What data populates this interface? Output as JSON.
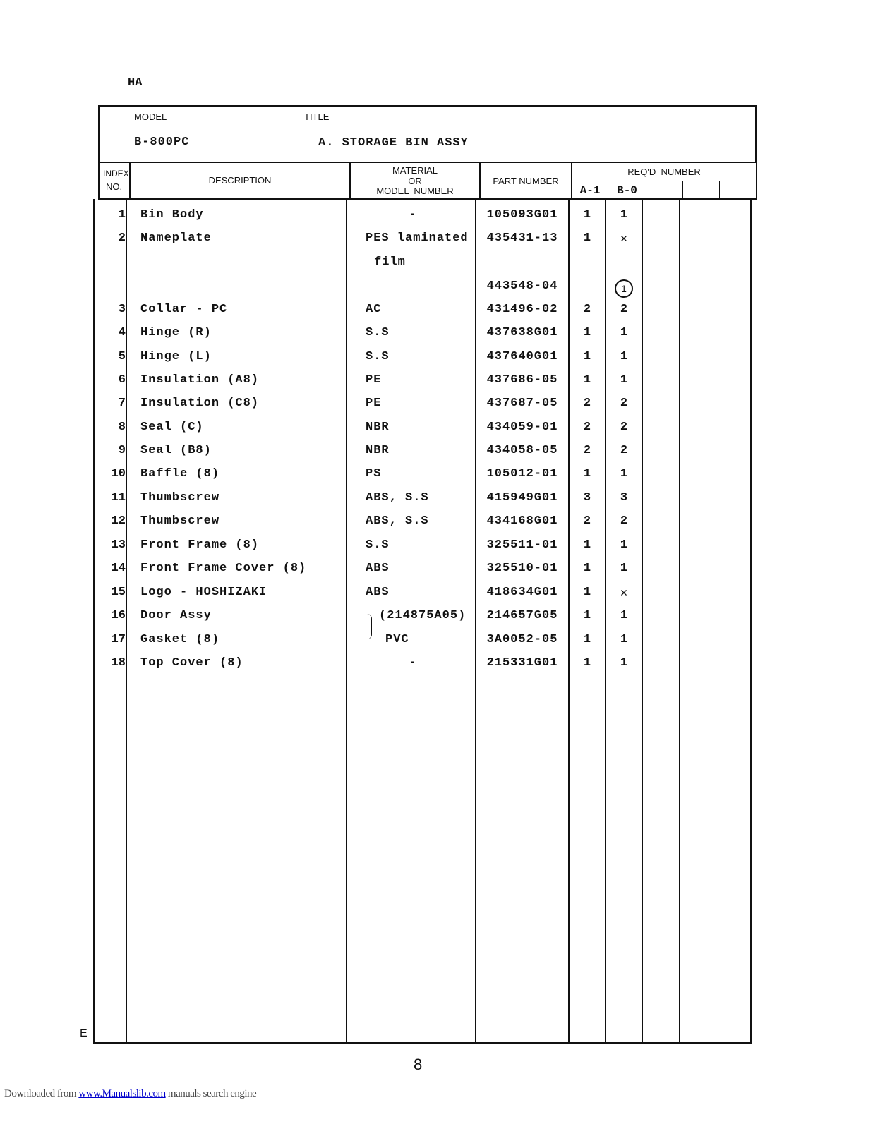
{
  "page_code": "HA",
  "header": {
    "model_label": "MODEL",
    "title_label": "TITLE",
    "model": "B-800PC",
    "title": "A. STORAGE BIN ASSY"
  },
  "columns": {
    "index_1": "INDEX",
    "index_2": "NO.",
    "description": "DESCRIPTION",
    "material_1": "MATERIAL",
    "material_2": "OR",
    "material_3": "MODEL  NUMBER",
    "part_number": "PART NUMBER",
    "reqd_number": "REQ'D  NUMBER",
    "variant_a": "A-1",
    "variant_b": "B-0"
  },
  "rows": [
    {
      "no": "1",
      "desc": "Bin Body",
      "mat": "-",
      "part": "105093G01",
      "a": "1",
      "b": "1"
    },
    {
      "no": "2",
      "desc": "Nameplate",
      "mat": "PES laminated",
      "part": "435431-13",
      "a": "1",
      "b": "✕"
    },
    {
      "no": "",
      "desc": "",
      "mat": "film",
      "part": "",
      "a": "",
      "b": ""
    },
    {
      "no": "",
      "desc": "",
      "mat": "",
      "part": "443548-04",
      "a": "",
      "b": "1",
      "b_circled": true
    },
    {
      "no": "3",
      "desc": "Collar - PC",
      "mat": "AC",
      "part": "431496-02",
      "a": "2",
      "b": "2"
    },
    {
      "no": "4",
      "desc": "Hinge (R)",
      "mat": "S.S",
      "part": "437638G01",
      "a": "1",
      "b": "1"
    },
    {
      "no": "5",
      "desc": "Hinge (L)",
      "mat": "S.S",
      "part": "437640G01",
      "a": "1",
      "b": "1"
    },
    {
      "no": "6",
      "desc": "Insulation (A8)",
      "mat": "PE",
      "part": "437686-05",
      "a": "1",
      "b": "1"
    },
    {
      "no": "7",
      "desc": "Insulation (C8)",
      "mat": "PE",
      "part": "437687-05",
      "a": "2",
      "b": "2"
    },
    {
      "no": "8",
      "desc": "Seal (C)",
      "mat": "NBR",
      "part": "434059-01",
      "a": "2",
      "b": "2"
    },
    {
      "no": "9",
      "desc": "Seal (B8)",
      "mat": "NBR",
      "part": "434058-05",
      "a": "2",
      "b": "2"
    },
    {
      "no": "10",
      "desc": "Baffle (8)",
      "mat": "PS",
      "part": "105012-01",
      "a": "1",
      "b": "1"
    },
    {
      "no": "11",
      "desc": "Thumbscrew",
      "mat": "ABS, S.S",
      "part": "415949G01",
      "a": "3",
      "b": "3"
    },
    {
      "no": "12",
      "desc": "Thumbscrew",
      "mat": "ABS, S.S",
      "part": "434168G01",
      "a": "2",
      "b": "2"
    },
    {
      "no": "13",
      "desc": "Front Frame (8)",
      "mat": "S.S",
      "part": "325511-01",
      "a": "1",
      "b": "1"
    },
    {
      "no": "14",
      "desc": "Front Frame Cover (8)",
      "mat": "ABS",
      "part": "325510-01",
      "a": "1",
      "b": "1"
    },
    {
      "no": "15",
      "desc": "Logo - HOSHIZAKI",
      "mat": "ABS",
      "part": "418634G01",
      "a": "1",
      "b": "✕"
    },
    {
      "no": "16",
      "desc": "Door Assy",
      "mat": "(214875A05)",
      "part": "214657G05",
      "a": "1",
      "b": "1"
    },
    {
      "no": "17",
      "desc": "Gasket (8)",
      "mat": "PVC",
      "part": "3A0052-05",
      "a": "1",
      "b": "1"
    },
    {
      "no": "18",
      "desc": "Top Cover (8)",
      "mat": "-",
      "part": "215331G01",
      "a": "1",
      "b": "1"
    }
  ],
  "side_mark": "E",
  "page_number": "8",
  "footer": {
    "prefix": "Downloaded from ",
    "link": "www.Manualslib.com",
    "suffix": " manuals search engine"
  }
}
